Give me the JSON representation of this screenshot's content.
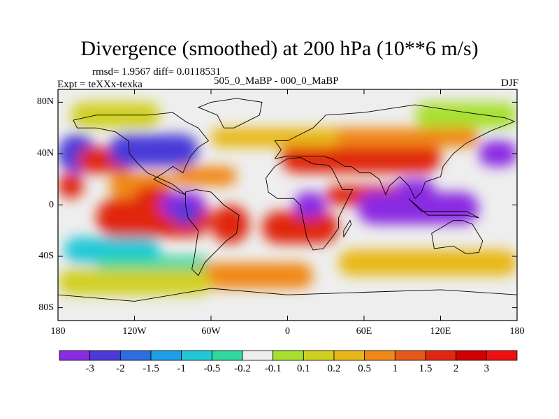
{
  "title": "Divergence (smoothed) at 200 hPa (10**6 m/s)",
  "stats": "rmsd= 1.9567 diff= 0.0118531",
  "experiment": "Expt = teXXx-texka",
  "comparison": "505_0_MaBP - 000_0_MaBP",
  "season": "DJF",
  "map": {
    "lat_range": [
      -90,
      90
    ],
    "lon_range": [
      -180,
      180
    ],
    "lat_ticks": [
      "80N",
      "40N",
      "0",
      "40S",
      "80S"
    ],
    "lat_tick_values": [
      80,
      40,
      0,
      -40,
      -80
    ],
    "lon_ticks": [
      "180",
      "120W",
      "60W",
      "0",
      "60E",
      "120E",
      "180"
    ],
    "lon_tick_values": [
      -180,
      -120,
      -60,
      0,
      60,
      120,
      180
    ]
  },
  "colorbar": {
    "labels": [
      "-3",
      "-2",
      "-1.5",
      "-1",
      "-0.5",
      "-0.2",
      "-0.1",
      "0.1",
      "0.2",
      "0.5",
      "1",
      "1.5",
      "2",
      "3"
    ],
    "colors": [
      "#8a2be2",
      "#4a3ad8",
      "#2a6ee0",
      "#1c9ee8",
      "#20c8d8",
      "#30d8a0",
      "#eeeeee",
      "#a8e030",
      "#d0d020",
      "#e8b818",
      "#f08818",
      "#e85818",
      "#e02810",
      "#d00000",
      "#ee1010"
    ]
  },
  "field": {
    "palette": {
      "purple": "#8a2be2",
      "blue": "#4a3ad8",
      "lblue": "#1c9ee8",
      "cyan": "#20c8d8",
      "teal": "#30d8a0",
      "white": "#eeeeee",
      "lgreen": "#a8e030",
      "yellow": "#d0d020",
      "gold": "#e8b818",
      "orange": "#f08818",
      "dorange": "#e85818",
      "red": "#e02810"
    },
    "background": "white",
    "cells": [
      [
        "purple",
        -180,
        -150,
        50,
        30
      ],
      [
        "blue",
        -180,
        -150,
        55,
        25
      ],
      [
        "red",
        -180,
        -160,
        25,
        5
      ],
      [
        "red",
        -150,
        -60,
        5,
        -25
      ],
      [
        "red",
        -165,
        -120,
        45,
        25
      ],
      [
        "orange",
        -140,
        -90,
        25,
        5
      ],
      [
        "red",
        -120,
        -90,
        15,
        -5
      ],
      [
        "purple",
        -100,
        -65,
        10,
        -10
      ],
      [
        "blue",
        -90,
        -70,
        0,
        -15
      ],
      [
        "purple",
        -130,
        -75,
        50,
        35
      ],
      [
        "blue",
        -140,
        -70,
        55,
        30
      ],
      [
        "orange",
        -90,
        -40,
        30,
        15
      ],
      [
        "red",
        -60,
        -30,
        0,
        -30
      ],
      [
        "red",
        -20,
        40,
        -5,
        -30
      ],
      [
        "purple",
        5,
        30,
        10,
        -10
      ],
      [
        "red",
        -5,
        120,
        50,
        25
      ],
      [
        "orange",
        20,
        150,
        60,
        45
      ],
      [
        "red",
        30,
        90,
        15,
        0
      ],
      [
        "purple",
        55,
        150,
        10,
        -15
      ],
      [
        "purple",
        85,
        115,
        20,
        5
      ],
      [
        "purple",
        150,
        180,
        50,
        30
      ],
      [
        "cyan",
        -175,
        -100,
        -25,
        -45
      ],
      [
        "teal",
        -150,
        -60,
        -40,
        -55
      ],
      [
        "orange",
        -70,
        20,
        -45,
        -65
      ],
      [
        "gold",
        40,
        180,
        -35,
        -55
      ],
      [
        "yellow",
        -180,
        -60,
        -50,
        -70
      ],
      [
        "yellow",
        -170,
        -100,
        80,
        60
      ],
      [
        "gold",
        -60,
        40,
        60,
        45
      ],
      [
        "lgreen",
        100,
        180,
        80,
        60
      ]
    ],
    "land_outlines": [
      [
        [
          -168,
          66
        ],
        [
          -150,
          70
        ],
        [
          -130,
          70
        ],
        [
          -110,
          70
        ],
        [
          -90,
          72
        ],
        [
          -80,
          65
        ],
        [
          -70,
          60
        ],
        [
          -62,
          50
        ],
        [
          -70,
          45
        ],
        [
          -76,
          38
        ],
        [
          -80,
          30
        ],
        [
          -82,
          25
        ],
        [
          -90,
          30
        ],
        [
          -97,
          25
        ],
        [
          -105,
          20
        ],
        [
          -95,
          15
        ],
        [
          -83,
          9
        ],
        [
          -80,
          8
        ],
        [
          -90,
          16
        ],
        [
          -110,
          25
        ],
        [
          -118,
          33
        ],
        [
          -124,
          40
        ],
        [
          -125,
          50
        ],
        [
          -135,
          57
        ],
        [
          -150,
          60
        ],
        [
          -165,
          60
        ],
        [
          -168,
          66
        ]
      ],
      [
        [
          -80,
          10
        ],
        [
          -72,
          12
        ],
        [
          -60,
          10
        ],
        [
          -50,
          0
        ],
        [
          -38,
          -8
        ],
        [
          -40,
          -22
        ],
        [
          -48,
          -28
        ],
        [
          -58,
          -38
        ],
        [
          -65,
          -45
        ],
        [
          -70,
          -55
        ],
        [
          -75,
          -50
        ],
        [
          -73,
          -40
        ],
        [
          -70,
          -20
        ],
        [
          -78,
          -10
        ],
        [
          -80,
          0
        ],
        [
          -80,
          10
        ]
      ],
      [
        [
          -10,
          36
        ],
        [
          -5,
          43
        ],
        [
          -10,
          50
        ],
        [
          0,
          50
        ],
        [
          10,
          55
        ],
        [
          20,
          60
        ],
        [
          30,
          70
        ],
        [
          60,
          72
        ],
        [
          100,
          78
        ],
        [
          140,
          72
        ],
        [
          170,
          68
        ],
        [
          178,
          65
        ],
        [
          160,
          58
        ],
        [
          140,
          48
        ],
        [
          130,
          40
        ],
        [
          122,
          30
        ],
        [
          120,
          22
        ],
        [
          108,
          18
        ],
        [
          105,
          10
        ],
        [
          100,
          5
        ],
        [
          95,
          15
        ],
        [
          88,
          22
        ],
        [
          80,
          15
        ],
        [
          77,
          8
        ],
        [
          72,
          20
        ],
        [
          65,
          25
        ],
        [
          57,
          25
        ],
        [
          50,
          30
        ],
        [
          45,
          30
        ],
        [
          35,
          36
        ],
        [
          28,
          38
        ],
        [
          15,
          38
        ],
        [
          0,
          38
        ],
        [
          -10,
          36
        ]
      ],
      [
        [
          -17,
          21
        ],
        [
          -10,
          30
        ],
        [
          0,
          36
        ],
        [
          10,
          37
        ],
        [
          20,
          32
        ],
        [
          32,
          31
        ],
        [
          35,
          28
        ],
        [
          43,
          12
        ],
        [
          51,
          12
        ],
        [
          45,
          0
        ],
        [
          40,
          -10
        ],
        [
          40,
          -18
        ],
        [
          35,
          -25
        ],
        [
          28,
          -34
        ],
        [
          20,
          -35
        ],
        [
          15,
          -25
        ],
        [
          12,
          -10
        ],
        [
          10,
          0
        ],
        [
          5,
          5
        ],
        [
          -8,
          5
        ],
        [
          -15,
          10
        ],
        [
          -17,
          21
        ]
      ],
      [
        [
          113,
          -22
        ],
        [
          115,
          -34
        ],
        [
          130,
          -32
        ],
        [
          140,
          -38
        ],
        [
          150,
          -37
        ],
        [
          153,
          -28
        ],
        [
          145,
          -15
        ],
        [
          137,
          -12
        ],
        [
          130,
          -12
        ],
        [
          120,
          -18
        ],
        [
          113,
          -22
        ]
      ],
      [
        [
          -50,
          60
        ],
        [
          -42,
          60
        ],
        [
          -22,
          70
        ],
        [
          -20,
          80
        ],
        [
          -40,
          83
        ],
        [
          -60,
          80
        ],
        [
          -70,
          76
        ],
        [
          -55,
          70
        ],
        [
          -50,
          60
        ]
      ],
      [
        [
          -180,
          -70
        ],
        [
          -120,
          -75
        ],
        [
          -60,
          -65
        ],
        [
          0,
          -70
        ],
        [
          60,
          -68
        ],
        [
          120,
          -66
        ],
        [
          180,
          -70
        ]
      ],
      [
        [
          44,
          -25
        ],
        [
          50,
          -15
        ],
        [
          49,
          -12
        ],
        [
          44,
          -20
        ],
        [
          44,
          -25
        ]
      ],
      [
        [
          95,
          5
        ],
        [
          105,
          -5
        ],
        [
          120,
          -5
        ],
        [
          140,
          -5
        ],
        [
          150,
          -10
        ],
        [
          140,
          -8
        ],
        [
          110,
          -8
        ],
        [
          95,
          5
        ]
      ]
    ]
  }
}
